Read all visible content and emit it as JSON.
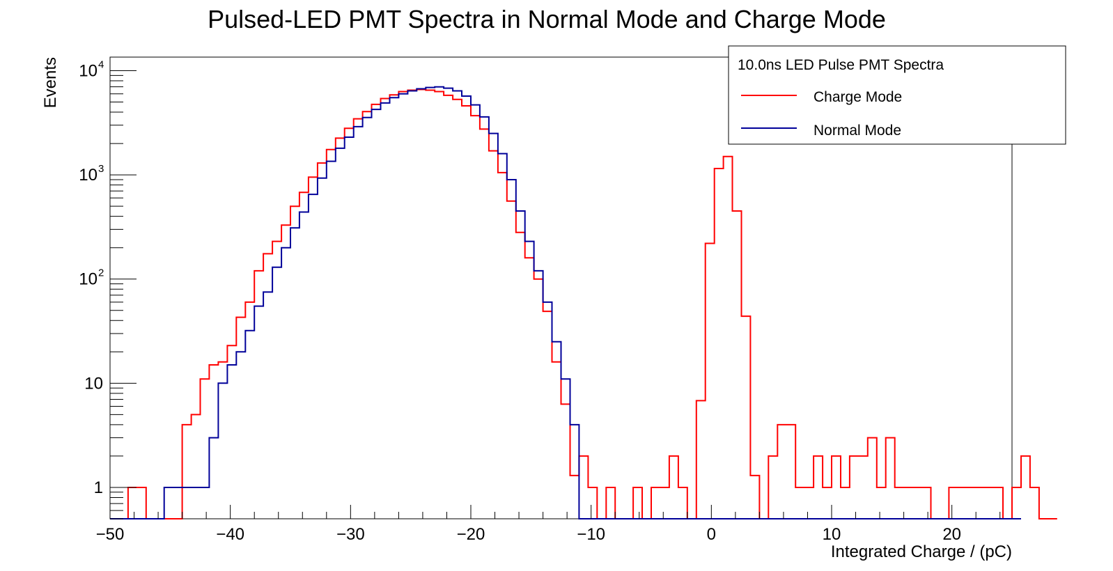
{
  "chart_data": {
    "type": "histogram",
    "title": "Pulsed-LED PMT Spectra in Normal Mode and Charge Mode",
    "xlabel": "Integrated Charge / (pC)",
    "ylabel": "Events",
    "xlim": [
      -50,
      25
    ],
    "ylim": [
      0.5,
      13500
    ],
    "yscale": "log",
    "grid": false,
    "bin_start": -50,
    "bin_width": 0.75,
    "x_ticks": [
      {
        "value": -50,
        "label": "−50"
      },
      {
        "value": -40,
        "label": "−40"
      },
      {
        "value": -30,
        "label": "−30"
      },
      {
        "value": -20,
        "label": "−20"
      },
      {
        "value": -10,
        "label": "−10"
      },
      {
        "value": 0,
        "label": "0"
      },
      {
        "value": 10,
        "label": "10"
      },
      {
        "value": 20,
        "label": "20"
      }
    ],
    "y_ticks": [
      {
        "value": 1,
        "label": "1"
      },
      {
        "value": 10,
        "label": "10"
      },
      {
        "value": 100,
        "label": "10",
        "exp": "2"
      },
      {
        "value": 1000,
        "label": "10",
        "exp": "3"
      },
      {
        "value": 10000,
        "label": "10",
        "exp": "4"
      }
    ],
    "legend": {
      "title": "10.0ns LED Pulse PMT Spectra",
      "position": "top-right"
    },
    "series": [
      {
        "name": "Charge Mode",
        "color": "#ff0000",
        "values": [
          0,
          0,
          1,
          1,
          0,
          0,
          0,
          0,
          4,
          5,
          11,
          15,
          16,
          23,
          43,
          60,
          120,
          175,
          230,
          330,
          500,
          680,
          950,
          1300,
          1750,
          2250,
          2800,
          3450,
          4050,
          4750,
          5400,
          5850,
          6300,
          6500,
          6600,
          6500,
          6300,
          5800,
          5300,
          4600,
          3700,
          2750,
          1700,
          1050,
          560,
          280,
          160,
          100,
          49,
          16,
          6.3,
          1.3,
          2,
          1,
          0,
          1,
          0,
          0,
          1,
          0,
          1,
          1,
          2,
          1,
          0,
          6.8,
          220,
          1150,
          1500,
          450,
          44,
          1.3,
          0,
          2,
          4,
          4,
          1,
          1,
          2,
          1,
          2,
          1,
          2,
          2,
          3,
          1,
          3,
          1,
          1,
          1,
          1,
          0,
          0,
          1,
          1,
          1,
          1,
          1,
          1,
          0,
          1,
          2,
          1,
          0,
          0
        ]
      },
      {
        "name": "Normal Mode",
        "color": "#000099",
        "values": [
          0,
          0,
          0,
          0,
          0,
          0,
          1,
          1,
          1,
          1,
          1,
          3,
          10,
          15,
          20,
          32,
          55,
          75,
          130,
          200,
          310,
          440,
          650,
          930,
          1350,
          1800,
          2300,
          2900,
          3550,
          4250,
          4900,
          5500,
          6000,
          6400,
          6700,
          6900,
          7000,
          6800,
          6400,
          5700,
          4700,
          3600,
          2500,
          1600,
          900,
          450,
          230,
          120,
          60,
          25,
          11,
          4,
          0,
          0,
          0,
          0,
          0,
          0,
          0,
          0,
          0,
          0,
          0,
          0,
          0,
          0,
          0,
          0,
          0,
          0,
          0,
          0,
          0,
          0,
          0,
          0,
          0,
          0,
          0,
          0,
          0,
          0,
          0,
          0,
          0,
          0,
          0,
          0,
          0,
          0,
          0,
          0,
          0,
          0,
          0,
          0,
          0,
          0,
          0,
          0,
          0
        ]
      }
    ]
  }
}
